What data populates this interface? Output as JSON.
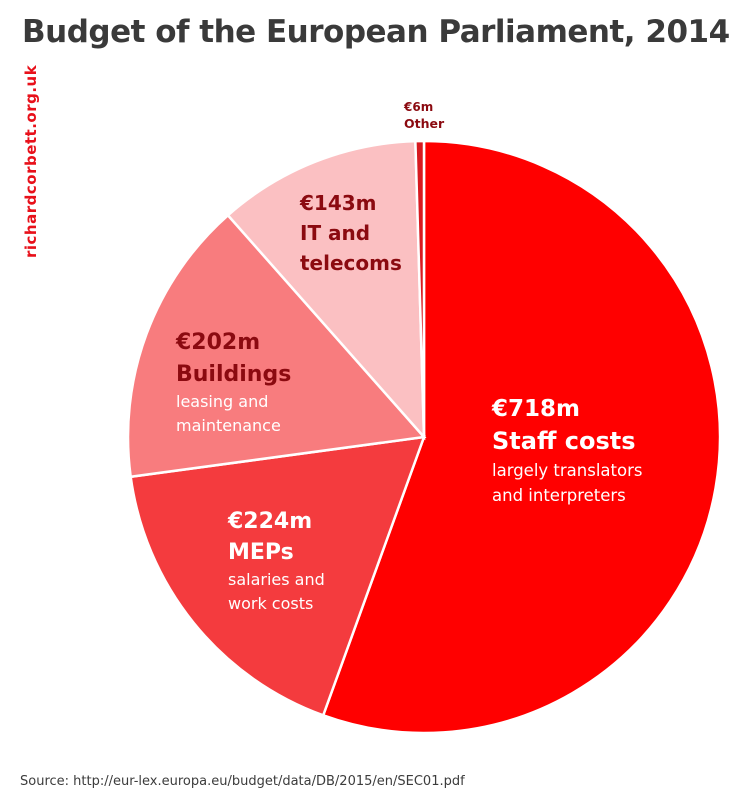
{
  "title": "Budget of the European Parliament, 2014",
  "watermark": "richardcorbett.org.uk",
  "source": "Source: http://eur-lex.europa.eu/budget/data/DB/2015/en/SEC01.pdf",
  "chart_data": {
    "type": "pie",
    "title": "Budget of the European Parliament, 2014",
    "start_angle": "12 o'clock",
    "direction": "clockwise",
    "slices": [
      {
        "key": "staff",
        "value": 718,
        "value_label": "€718m",
        "label": "Staff costs",
        "sublabel": [
          "largely translators",
          "and interpreters"
        ],
        "color": "#ff0000"
      },
      {
        "key": "meps",
        "value": 224,
        "value_label": "€224m",
        "label": "MEPs",
        "sublabel": [
          "salaries and",
          "work costs"
        ],
        "color": "#f43b3e"
      },
      {
        "key": "buildings",
        "value": 202,
        "value_label": "€202m",
        "label": "Buildings",
        "sublabel": [
          "leasing and",
          "maintenance"
        ],
        "color": "#f87c7e"
      },
      {
        "key": "it",
        "value": 143,
        "value_label": "€143m",
        "label": "IT and telecoms",
        "label_lines": [
          "IT and",
          "telecoms"
        ],
        "sublabel": [],
        "color": "#fbc0c2"
      },
      {
        "key": "other",
        "value": 6,
        "value_label": "€6m",
        "label": "Other",
        "sublabel": [],
        "color": "#d81a20"
      }
    ]
  }
}
